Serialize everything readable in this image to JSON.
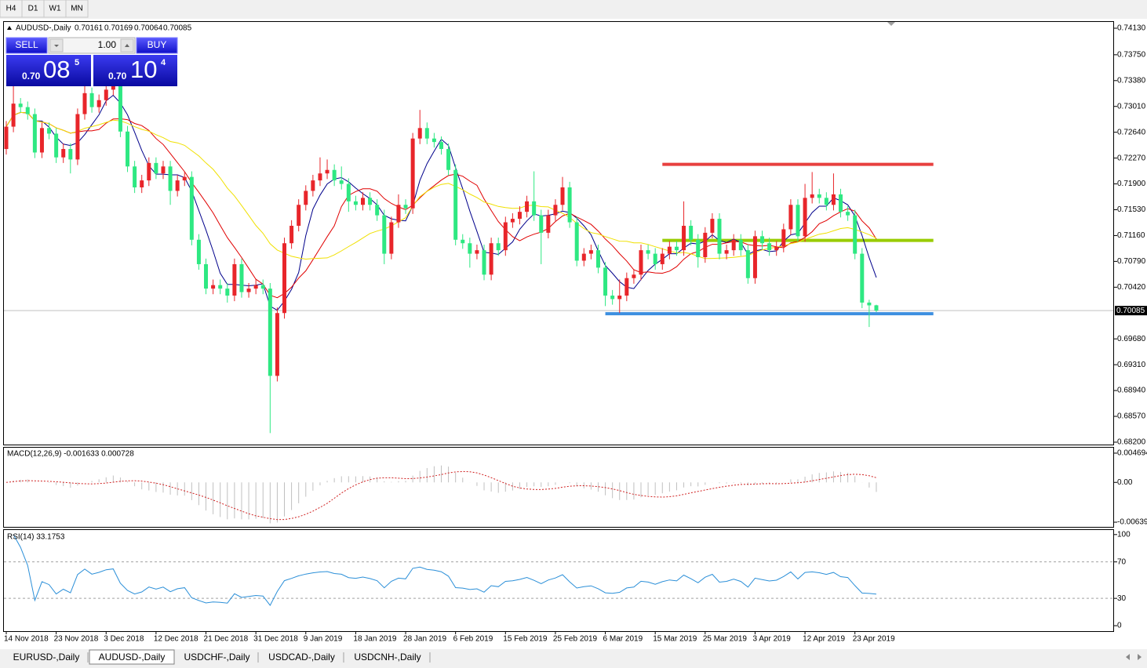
{
  "toolbar": {
    "timeframes": [
      "H4",
      "D1",
      "W1",
      "MN"
    ]
  },
  "trade_panel": {
    "sell": "SELL",
    "buy": "BUY",
    "lot": "1.00",
    "sell_price": {
      "prefix": "0.70",
      "big": "08",
      "sup": "5"
    },
    "buy_price": {
      "prefix": "0.70",
      "big": "10",
      "sup": "4"
    }
  },
  "chart_data": [
    {
      "type": "candlestick",
      "title": "AUDUSD-,Daily",
      "categories": [
        "14 Nov 2018",
        null,
        null,
        null,
        null,
        null,
        null,
        "23 Nov 2018",
        null,
        null,
        null,
        null,
        null,
        null,
        "3 Dec 2018",
        null,
        null,
        null,
        null,
        null,
        null,
        "12 Dec 2018",
        null,
        null,
        null,
        null,
        null,
        null,
        "21 Dec 2018",
        null,
        null,
        null,
        null,
        null,
        null,
        "31 Dec 2018",
        null,
        null,
        null,
        null,
        null,
        null,
        "9 Jan 2019",
        null,
        null,
        null,
        null,
        null,
        null,
        "18 Jan 2019",
        null,
        null,
        null,
        null,
        null,
        null,
        "28 Jan 2019",
        null,
        null,
        null,
        null,
        null,
        null,
        "6 Feb 2019",
        null,
        null,
        null,
        null,
        null,
        null,
        "15 Feb 2019",
        null,
        null,
        null,
        null,
        null,
        null,
        "25 Feb 2019",
        null,
        null,
        null,
        null,
        null,
        null,
        "6 Mar 2019",
        null,
        null,
        null,
        null,
        null,
        null,
        "15 Mar 2019",
        null,
        null,
        null,
        null,
        null,
        null,
        "25 Mar 2019",
        null,
        null,
        null,
        null,
        null,
        null,
        "3 Apr 2019",
        null,
        null,
        null,
        null,
        null,
        null,
        "12 Apr 2019",
        null,
        null,
        null,
        null,
        null,
        null,
        "23 Apr 2019",
        null,
        null,
        null
      ],
      "ohlc": [
        [
          0.724,
          0.728,
          0.7232,
          0.7272
        ],
        [
          0.7272,
          0.7338,
          0.7264,
          0.7305
        ],
        [
          0.7305,
          0.7313,
          0.7292,
          0.73
        ],
        [
          0.73,
          0.7308,
          0.7282,
          0.729
        ],
        [
          0.729,
          0.7298,
          0.7227,
          0.7235
        ],
        [
          0.7235,
          0.7278,
          0.7227,
          0.727
        ],
        [
          0.727,
          0.7278,
          0.7254,
          0.7262
        ],
        [
          0.7262,
          0.727,
          0.722,
          0.7228
        ],
        [
          0.7228,
          0.7248,
          0.722,
          0.724
        ],
        [
          0.724,
          0.7248,
          0.7205,
          0.7225
        ],
        [
          0.7225,
          0.7298,
          0.7217,
          0.729
        ],
        [
          0.729,
          0.7335,
          0.7282,
          0.732
        ],
        [
          0.732,
          0.7328,
          0.7292,
          0.73
        ],
        [
          0.73,
          0.7318,
          0.7292,
          0.731
        ],
        [
          0.731,
          0.7333,
          0.7302,
          0.7325
        ],
        [
          0.7325,
          0.7342,
          0.7317,
          0.733
        ],
        [
          0.733,
          0.7338,
          0.7257,
          0.7265
        ],
        [
          0.7265,
          0.7273,
          0.7207,
          0.7215
        ],
        [
          0.7215,
          0.7223,
          0.7177,
          0.7185
        ],
        [
          0.7185,
          0.7203,
          0.7177,
          0.7195
        ],
        [
          0.7195,
          0.7228,
          0.7187,
          0.722
        ],
        [
          0.722,
          0.7228,
          0.7197,
          0.7205
        ],
        [
          0.7205,
          0.7223,
          0.7197,
          0.7215
        ],
        [
          0.7215,
          0.7223,
          0.716,
          0.718
        ],
        [
          0.718,
          0.7203,
          0.7172,
          0.7195
        ],
        [
          0.7195,
          0.7208,
          0.7187,
          0.72
        ],
        [
          0.72,
          0.7208,
          0.7102,
          0.711
        ],
        [
          0.711,
          0.7118,
          0.7067,
          0.7075
        ],
        [
          0.7075,
          0.7083,
          0.7032,
          0.704
        ],
        [
          0.704,
          0.7053,
          0.7032,
          0.7045
        ],
        [
          0.7045,
          0.7053,
          0.7032,
          0.704
        ],
        [
          0.704,
          0.7048,
          0.702,
          0.703
        ],
        [
          0.703,
          0.7083,
          0.7022,
          0.7075
        ],
        [
          0.7075,
          0.7083,
          0.7027,
          0.7035
        ],
        [
          0.7035,
          0.7048,
          0.7027,
          0.704
        ],
        [
          0.704,
          0.7053,
          0.7032,
          0.7045
        ],
        [
          0.7045,
          0.7053,
          0.7032,
          0.704
        ],
        [
          0.704,
          0.7048,
          0.6833,
          0.6915
        ],
        [
          0.6915,
          0.7013,
          0.6907,
          0.7005
        ],
        [
          0.7005,
          0.7113,
          0.6997,
          0.7105
        ],
        [
          0.7105,
          0.7138,
          0.7097,
          0.713
        ],
        [
          0.713,
          0.7168,
          0.7122,
          0.716
        ],
        [
          0.716,
          0.7188,
          0.7152,
          0.718
        ],
        [
          0.718,
          0.7203,
          0.7172,
          0.7195
        ],
        [
          0.7195,
          0.7228,
          0.7187,
          0.7205
        ],
        [
          0.7205,
          0.7225,
          0.7197,
          0.721
        ],
        [
          0.721,
          0.7218,
          0.7187,
          0.7195
        ],
        [
          0.7195,
          0.7215,
          0.7182,
          0.719
        ],
        [
          0.719,
          0.7198,
          0.715,
          0.7165
        ],
        [
          0.7165,
          0.7173,
          0.7152,
          0.716
        ],
        [
          0.716,
          0.7178,
          0.7152,
          0.717
        ],
        [
          0.717,
          0.7178,
          0.7152,
          0.716
        ],
        [
          0.716,
          0.7168,
          0.7137,
          0.7145
        ],
        [
          0.7145,
          0.7153,
          0.7075,
          0.709
        ],
        [
          0.709,
          0.7143,
          0.7082,
          0.7135
        ],
        [
          0.7135,
          0.7175,
          0.7127,
          0.716
        ],
        [
          0.716,
          0.7168,
          0.7147,
          0.7155
        ],
        [
          0.7155,
          0.7263,
          0.7147,
          0.7255
        ],
        [
          0.7255,
          0.7296,
          0.7247,
          0.727
        ],
        [
          0.727,
          0.7278,
          0.7247,
          0.7255
        ],
        [
          0.7255,
          0.7263,
          0.7242,
          0.725
        ],
        [
          0.725,
          0.7258,
          0.7232,
          0.724
        ],
        [
          0.724,
          0.7248,
          0.7202,
          0.721
        ],
        [
          0.721,
          0.7218,
          0.7102,
          0.711
        ],
        [
          0.711,
          0.7118,
          0.7097,
          0.7105
        ],
        [
          0.7105,
          0.7113,
          0.707,
          0.709
        ],
        [
          0.709,
          0.7103,
          0.7082,
          0.7095
        ],
        [
          0.7095,
          0.7103,
          0.7052,
          0.706
        ],
        [
          0.706,
          0.7113,
          0.7052,
          0.7105
        ],
        [
          0.7105,
          0.7113,
          0.7087,
          0.7095
        ],
        [
          0.7095,
          0.7143,
          0.7087,
          0.7135
        ],
        [
          0.7135,
          0.7148,
          0.7127,
          0.714
        ],
        [
          0.714,
          0.7158,
          0.7132,
          0.715
        ],
        [
          0.715,
          0.7173,
          0.7142,
          0.7165
        ],
        [
          0.7165,
          0.7208,
          0.7137,
          0.7145
        ],
        [
          0.7145,
          0.7153,
          0.7075,
          0.712
        ],
        [
          0.712,
          0.7153,
          0.7112,
          0.7145
        ],
        [
          0.7145,
          0.7168,
          0.7137,
          0.716
        ],
        [
          0.716,
          0.72,
          0.7152,
          0.7185
        ],
        [
          0.7185,
          0.7193,
          0.7127,
          0.7135
        ],
        [
          0.7135,
          0.7143,
          0.7072,
          0.708
        ],
        [
          0.708,
          0.7098,
          0.7072,
          0.709
        ],
        [
          0.709,
          0.7103,
          0.7082,
          0.7095
        ],
        [
          0.7095,
          0.7103,
          0.7062,
          0.707
        ],
        [
          0.707,
          0.7078,
          0.7015,
          0.703
        ],
        [
          0.703,
          0.7038,
          0.7017,
          0.7025
        ],
        [
          0.7025,
          0.7053,
          0.7005,
          0.703
        ],
        [
          0.703,
          0.7063,
          0.7022,
          0.7055
        ],
        [
          0.7055,
          0.7068,
          0.7047,
          0.706
        ],
        [
          0.706,
          0.7103,
          0.7052,
          0.7095
        ],
        [
          0.7095,
          0.7103,
          0.7082,
          0.709
        ],
        [
          0.709,
          0.7098,
          0.7067,
          0.7075
        ],
        [
          0.7075,
          0.7098,
          0.7067,
          0.709
        ],
        [
          0.709,
          0.7108,
          0.7082,
          0.71
        ],
        [
          0.71,
          0.7108,
          0.7087,
          0.7095
        ],
        [
          0.7095,
          0.7165,
          0.7087,
          0.713
        ],
        [
          0.713,
          0.7138,
          0.7102,
          0.711
        ],
        [
          0.711,
          0.7118,
          0.707,
          0.7085
        ],
        [
          0.7085,
          0.7128,
          0.7077,
          0.712
        ],
        [
          0.712,
          0.7148,
          0.7112,
          0.714
        ],
        [
          0.714,
          0.7148,
          0.7082,
          0.709
        ],
        [
          0.709,
          0.7103,
          0.7082,
          0.7095
        ],
        [
          0.7095,
          0.7118,
          0.7087,
          0.711
        ],
        [
          0.711,
          0.7118,
          0.7087,
          0.7095
        ],
        [
          0.7095,
          0.7103,
          0.7047,
          0.7055
        ],
        [
          0.7055,
          0.7123,
          0.7047,
          0.7115
        ],
        [
          0.7115,
          0.7123,
          0.7097,
          0.7105
        ],
        [
          0.7105,
          0.7113,
          0.7087,
          0.7095
        ],
        [
          0.7095,
          0.7108,
          0.7087,
          0.71
        ],
        [
          0.71,
          0.7133,
          0.7092,
          0.7125
        ],
        [
          0.7125,
          0.7168,
          0.7117,
          0.716
        ],
        [
          0.716,
          0.7168,
          0.7107,
          0.7115
        ],
        [
          0.7115,
          0.719,
          0.7107,
          0.717
        ],
        [
          0.717,
          0.7207,
          0.7162,
          0.7175
        ],
        [
          0.7175,
          0.7183,
          0.7162,
          0.717
        ],
        [
          0.717,
          0.7178,
          0.7152,
          0.716
        ],
        [
          0.716,
          0.7205,
          0.7152,
          0.7175
        ],
        [
          0.7175,
          0.7183,
          0.7142,
          0.715
        ],
        [
          0.715,
          0.7158,
          0.7137,
          0.7145
        ],
        [
          0.7145,
          0.7153,
          0.7082,
          0.709
        ],
        [
          0.709,
          0.7098,
          0.7012,
          0.702
        ],
        [
          0.702,
          0.7024,
          0.6985,
          0.7016
        ],
        [
          0.70161,
          0.70169,
          0.70064,
          0.70085
        ]
      ],
      "up_color": "#e8252a",
      "down_color": "#2ee882",
      "moving_averages": [
        {
          "period": 5,
          "color": "#00008b"
        },
        {
          "period": 10,
          "color": "#e00000"
        },
        {
          "period": 20,
          "color": "#f0e000"
        }
      ],
      "price_line_color": "#c0c0c0",
      "hlines": [
        {
          "price": 0.7218,
          "color": "#e8403f",
          "bars": [
            92,
            130
          ]
        },
        {
          "price": 0.7109,
          "color": "#99cc00",
          "bars": [
            92,
            130
          ]
        },
        {
          "price": 0.7004,
          "color": "#3d8fe0",
          "bars": [
            84,
            130
          ]
        }
      ],
      "ylim": [
        0.68166,
        0.7422
      ],
      "yticks": [
        {
          "value": 0.7413,
          "label": "0.74130"
        },
        {
          "value": 0.7375,
          "label": "0.73750"
        },
        {
          "value": 0.7338,
          "label": "0.73380"
        },
        {
          "value": 0.7301,
          "label": "0.73010"
        },
        {
          "value": 0.7264,
          "label": "0.72640"
        },
        {
          "value": 0.7227,
          "label": "0.72270"
        },
        {
          "value": 0.719,
          "label": "0.71900"
        },
        {
          "value": 0.7153,
          "label": "0.71530"
        },
        {
          "value": 0.7116,
          "label": "0.71160"
        },
        {
          "value": 0.7079,
          "label": "0.70790"
        },
        {
          "value": 0.7042,
          "label": "0.70420"
        },
        {
          "value": 0.6968,
          "label": "0.69680"
        },
        {
          "value": 0.6931,
          "label": "0.69310"
        },
        {
          "value": 0.6894,
          "label": "0.68940"
        },
        {
          "value": 0.6857,
          "label": "0.68570"
        },
        {
          "value": 0.682,
          "label": "0.68200"
        }
      ]
    },
    {
      "type": "macd",
      "title": "MACD(12,26,9) -0.001633 0.000728",
      "fast": 12,
      "slow": 26,
      "signal": 9,
      "color": "#c0c0c0",
      "signal_color": "#d02020",
      "ylim": [
        -0.00714,
        0.00557
      ],
      "yticks": [
        0.004694,
        {
          "value": 0,
          "label": "0.00"
        },
        -0.00639
      ]
    },
    {
      "type": "rsi",
      "title": "RSI(14) 33.1753",
      "period": 14,
      "color": "#2b8fd8",
      "ylim": [
        -6,
        105
      ],
      "yticks": [
        100,
        70,
        30,
        0
      ],
      "levels": [
        70,
        30
      ]
    }
  ],
  "tabs": {
    "items": [
      "EURUSD-,Daily",
      "AUDUSD-,Daily",
      "USDCHF-,Daily",
      "USDCAD-,Daily",
      "USDCNH-,Daily"
    ],
    "active": 1
  }
}
